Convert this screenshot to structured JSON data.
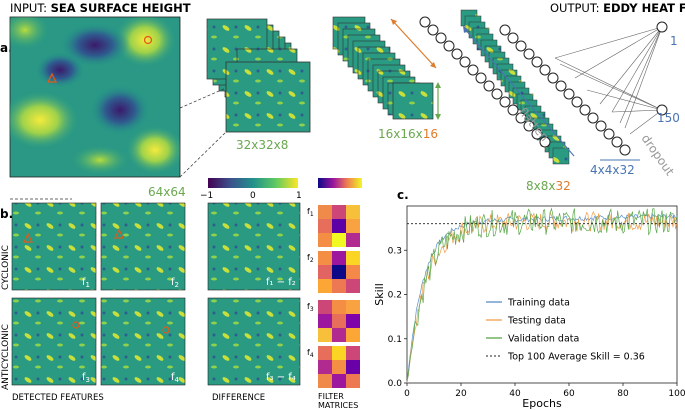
{
  "panel_a": {
    "label": "a.",
    "input_prefix": "INPUT: ",
    "input_bold": "SEA SURFACE HEIGHT",
    "output_prefix": "OUTPUT: ",
    "output_bold": "EDDY HEAT FLUX",
    "size_input": "64x64",
    "size_conv1": "32x32x8",
    "size_conv2_a": "16x16x",
    "size_conv2_b": "16",
    "size_conv3_a": "8x8x",
    "size_conv3_b": "32",
    "size_flat": "4x4x32",
    "flatten": "flatten",
    "dropout": "dropout",
    "n_out": "1",
    "n_hidden": "150"
  },
  "panel_b": {
    "label": "b.",
    "row_cyclonic": "CYCLONIC",
    "row_anticyclonic": "ANTICYCLONIC",
    "f1": "f",
    "f1_sub": "1",
    "f2_sub": "2",
    "f3_sub": "3",
    "f4_sub": "4",
    "diff_top": "f₁ − f₂",
    "diff_bottom": "f₃ − f₄",
    "detected": "DETECTED FEATURES",
    "difference": "DIFFERENCE",
    "filter1": "FILTER",
    "filter2": "MATRICES",
    "cb_min": "−1",
    "cb_mid": "0",
    "cb_max": "1"
  },
  "chart_data": {
    "type": "line",
    "label": "c.",
    "xlabel": "Epochs",
    "ylabel": "Skill",
    "xlim": [
      0,
      100
    ],
    "ylim": [
      0,
      0.4
    ],
    "xticks": [
      "0",
      "20",
      "40",
      "60",
      "80",
      "100"
    ],
    "yticks": [
      "0.0",
      "0.1",
      "0.2",
      "0.3"
    ],
    "reference_line": 0.36,
    "series": [
      {
        "name": "Training data",
        "color": "#5b8fc9"
      },
      {
        "name": "Testing data",
        "color": "#f0a04b"
      },
      {
        "name": "Validation data",
        "color": "#5aa84a"
      }
    ],
    "legend_ref": "Top 100 Average Skill = 0.36"
  },
  "colors": {
    "orange": "#e07b2a",
    "green": "#6aa84f",
    "blue": "#4a74b4",
    "gray": "#999999"
  }
}
